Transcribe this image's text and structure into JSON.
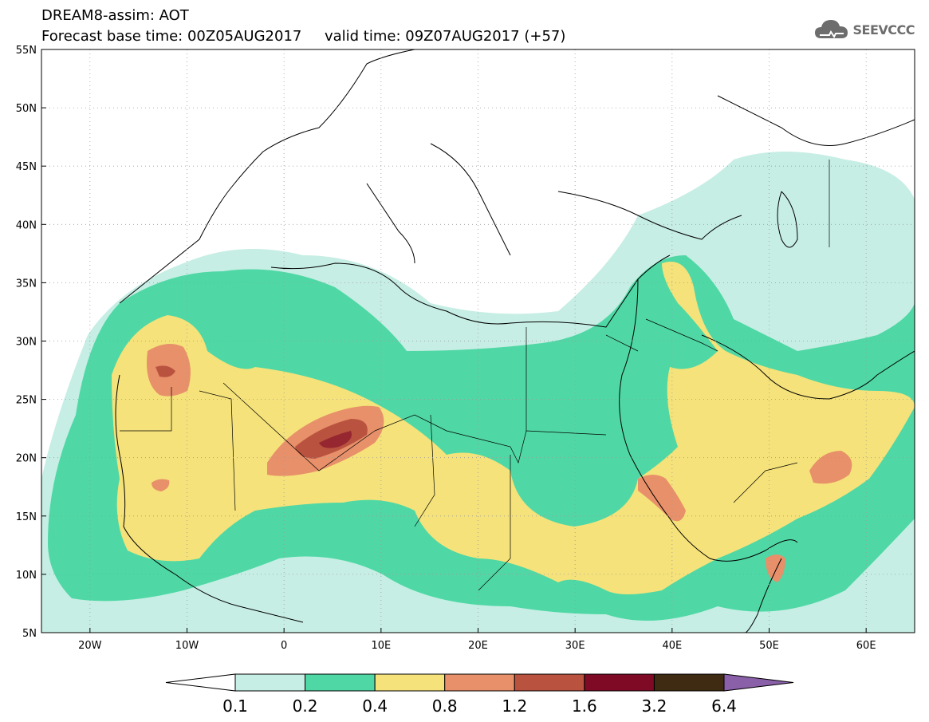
{
  "header": {
    "title_line1": "DREAM8-assim: AOT",
    "title_line2_base": "Forecast base time: 00Z05AUG2017",
    "title_line2_valid": "valid time: 09Z07AUG2017 (+57)",
    "logo_text": "SEEVCCC"
  },
  "map": {
    "lat_ticks": [
      "55N",
      "50N",
      "45N",
      "40N",
      "35N",
      "30N",
      "25N",
      "20N",
      "15N",
      "10N",
      "5N"
    ],
    "lon_ticks": [
      "20W",
      "10W",
      "0",
      "10E",
      "20E",
      "30E",
      "40E",
      "50E",
      "60E"
    ],
    "lat_values": [
      55,
      50,
      45,
      40,
      35,
      30,
      25,
      20,
      15,
      10,
      5
    ],
    "lon_values": [
      -20,
      -10,
      0,
      10,
      20,
      30,
      40,
      50,
      60
    ],
    "extent": {
      "lon_min": -25,
      "lon_max": 65,
      "lat_min": 5,
      "lat_max": 55
    },
    "grid": "dotted"
  },
  "colorbar": {
    "labels": [
      "0.1",
      "0.2",
      "0.4",
      "0.8",
      "1.2",
      "1.6",
      "3.2",
      "6.4"
    ],
    "colors": [
      "#ffffff",
      "#c6eee4",
      "#4fd8a5",
      "#f5e27a",
      "#e8906a",
      "#b9533f",
      "#7e0a26",
      "#3f2a12",
      "#8a60a8"
    ]
  },
  "chart_data": {
    "type": "heatmap",
    "variable": "AOT",
    "levels": [
      0.1,
      0.2,
      0.4,
      0.8,
      1.2,
      1.6,
      3.2,
      6.4
    ],
    "level_colors": {
      "0.1-0.2": "#c6eee4",
      "0.2-0.4": "#4fd8a5",
      "0.4-0.8": "#f5e27a",
      "0.8-1.2": "#e8906a",
      "1.2-1.6": "#b9533f",
      "1.6-3.2": "#7e0a26"
    }
  }
}
